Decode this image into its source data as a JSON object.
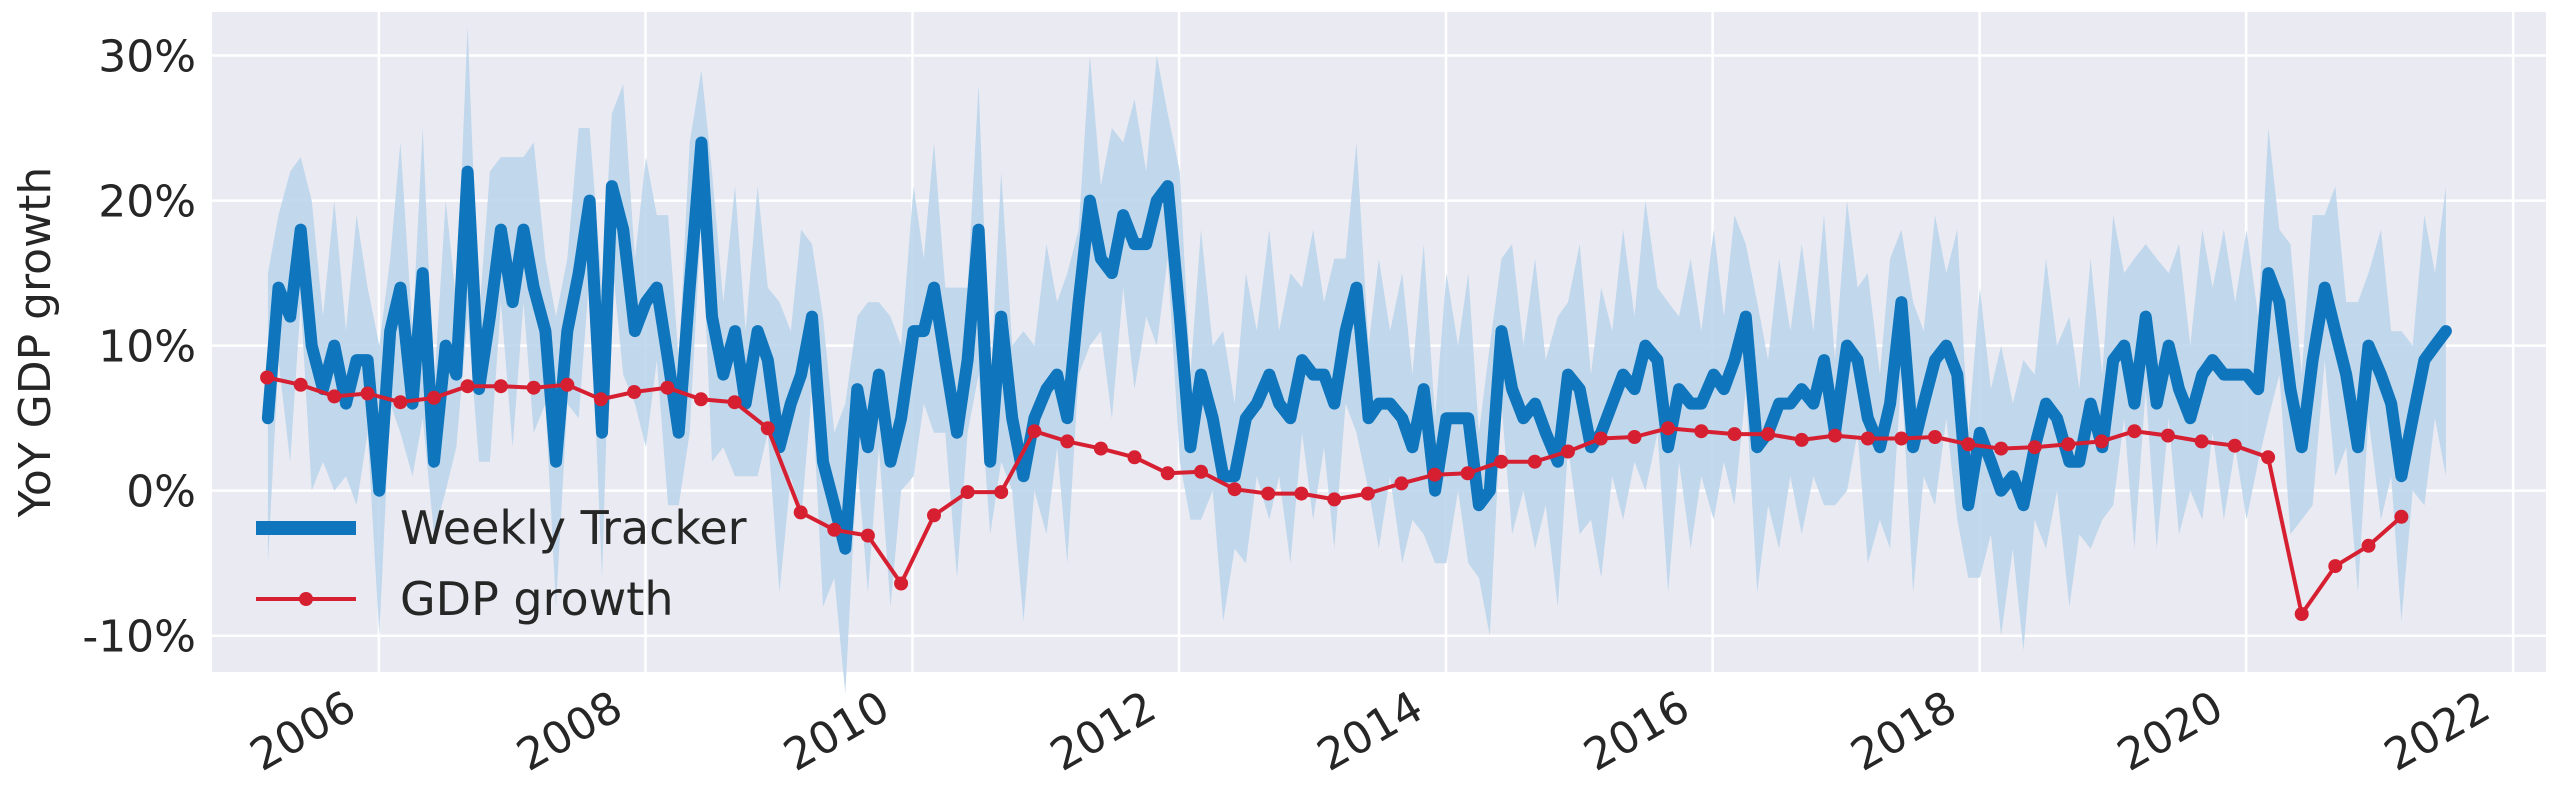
{
  "chart_data": {
    "type": "line",
    "title": "",
    "xlabel": "",
    "ylabel": "YoY GDP growth",
    "xlim": [
      "2004-10-01",
      "2022-04-01"
    ],
    "ylim": [
      -12.5,
      33
    ],
    "grid": true,
    "legend_position": "lower-left",
    "x_ticks": [
      {
        "date": "2006-01-01",
        "label": "2006"
      },
      {
        "date": "2008-01-01",
        "label": "2008"
      },
      {
        "date": "2010-01-01",
        "label": "2010"
      },
      {
        "date": "2012-01-01",
        "label": "2012"
      },
      {
        "date": "2014-01-01",
        "label": "2014"
      },
      {
        "date": "2016-01-01",
        "label": "2016"
      },
      {
        "date": "2018-01-01",
        "label": "2018"
      },
      {
        "date": "2020-01-01",
        "label": "2020"
      },
      {
        "date": "2022-01-01",
        "label": "2022"
      }
    ],
    "y_ticks": [
      {
        "value": -10,
        "label": "-10%"
      },
      {
        "value": 0,
        "label": "0%"
      },
      {
        "value": 10,
        "label": "10%"
      },
      {
        "value": 20,
        "label": "20%"
      },
      {
        "value": 30,
        "label": "30%"
      }
    ],
    "colors": {
      "weekly_line": "#0f75bc",
      "weekly_band": "#b8d4eb",
      "gdp": "#d62031",
      "background": "#eaeaf2",
      "grid": "#ffffff"
    },
    "band_half_width": [
      10,
      5
    ],
    "series": [
      {
        "name": "Weekly Tracker",
        "x": [
          "2005-03-03",
          "2005-04-01",
          "2005-05-03",
          "2005-06-01",
          "2005-07-01",
          "2005-08-01",
          "2005-09-01",
          "2005-10-03",
          "2005-11-01",
          "2005-12-01",
          "2006-01-02",
          "2006-02-01",
          "2006-03-01",
          "2006-04-03",
          "2006-05-01",
          "2006-06-01",
          "2006-07-03",
          "2006-08-01",
          "2006-09-01",
          "2006-10-02",
          "2006-11-01",
          "2006-12-01",
          "2007-01-02",
          "2007-02-01",
          "2007-03-01",
          "2007-04-02",
          "2007-05-01",
          "2007-06-01",
          "2007-07-02",
          "2007-08-01",
          "2007-09-04",
          "2007-10-01",
          "2007-11-01",
          "2007-12-03",
          "2008-01-02",
          "2008-02-01",
          "2008-03-03",
          "2008-04-01",
          "2008-05-01",
          "2008-06-02",
          "2008-07-01",
          "2008-08-01",
          "2008-09-02",
          "2008-10-01",
          "2008-11-03",
          "2008-12-01",
          "2009-01-02",
          "2009-02-02",
          "2009-03-02",
          "2009-04-01",
          "2009-05-01",
          "2009-06-01",
          "2009-07-01",
          "2009-08-03",
          "2009-09-01",
          "2009-10-01",
          "2009-11-02",
          "2009-12-01",
          "2010-01-04",
          "2010-02-01",
          "2010-03-01",
          "2010-04-01",
          "2010-05-03",
          "2010-06-01",
          "2010-07-01",
          "2010-08-02",
          "2010-09-01",
          "2010-10-01",
          "2010-11-01",
          "2010-12-01",
          "2011-01-03",
          "2011-02-01",
          "2011-03-01",
          "2011-04-01",
          "2011-05-02",
          "2011-06-01",
          "2011-07-01",
          "2011-08-01",
          "2011-09-01",
          "2011-10-03",
          "2011-11-01",
          "2011-12-01",
          "2012-01-03",
          "2012-02-01",
          "2012-03-01",
          "2012-04-02",
          "2012-05-01",
          "2012-06-01",
          "2012-07-02",
          "2012-08-01",
          "2012-09-04",
          "2012-10-01",
          "2012-11-01",
          "2012-12-03",
          "2013-01-02",
          "2013-02-01",
          "2013-03-01",
          "2013-04-01",
          "2013-05-01",
          "2013-06-03",
          "2013-07-01",
          "2013-08-01",
          "2013-09-03",
          "2013-10-01",
          "2013-11-01",
          "2013-12-02",
          "2014-01-02",
          "2014-02-03",
          "2014-03-03",
          "2014-04-01",
          "2014-05-01",
          "2014-06-02",
          "2014-07-01",
          "2014-08-01",
          "2014-09-02",
          "2014-10-01",
          "2014-11-03",
          "2014-12-01",
          "2015-01-02",
          "2015-02-02",
          "2015-03-02",
          "2015-04-01",
          "2015-05-01",
          "2015-06-01",
          "2015-07-01",
          "2015-08-03",
          "2015-09-01",
          "2015-10-01",
          "2015-11-02",
          "2015-12-01",
          "2016-01-04",
          "2016-02-01",
          "2016-03-01",
          "2016-04-01",
          "2016-05-02",
          "2016-06-01",
          "2016-07-01",
          "2016-08-01",
          "2016-09-01",
          "2016-10-03",
          "2016-11-01",
          "2016-12-01",
          "2017-01-03",
          "2017-02-01",
          "2017-03-01",
          "2017-04-03",
          "2017-05-01",
          "2017-06-01",
          "2017-07-03",
          "2017-08-01",
          "2017-09-01",
          "2017-10-02",
          "2017-11-01",
          "2017-12-01",
          "2018-01-02",
          "2018-02-01",
          "2018-03-01",
          "2018-04-02",
          "2018-05-01",
          "2018-06-01",
          "2018-07-02",
          "2018-08-01",
          "2018-09-04",
          "2018-10-01",
          "2018-11-01",
          "2018-12-03",
          "2019-01-02",
          "2019-02-01",
          "2019-03-01",
          "2019-04-01",
          "2019-05-01",
          "2019-06-03",
          "2019-07-01",
          "2019-08-01",
          "2019-09-03",
          "2019-10-01",
          "2019-11-01",
          "2019-12-02",
          "2020-01-02",
          "2020-02-03",
          "2020-03-02",
          "2020-04-01",
          "2020-05-01",
          "2020-06-01",
          "2020-07-01",
          "2020-08-03",
          "2020-09-01",
          "2020-10-01",
          "2020-11-02",
          "2020-12-01",
          "2021-01-04",
          "2021-02-01",
          "2021-03-01",
          "2021-04-01",
          "2021-05-03",
          "2021-06-01",
          "2021-07-01"
        ],
        "values": [
          5,
          14,
          12,
          18,
          10,
          7,
          10,
          6,
          9,
          9,
          0,
          11,
          14,
          6,
          15,
          2,
          10,
          8,
          22,
          7,
          12,
          18,
          13,
          18,
          14,
          11,
          2,
          11,
          15,
          20,
          4,
          21,
          18,
          11,
          13,
          14,
          9,
          4,
          14,
          24,
          12,
          8,
          11,
          6,
          11,
          9,
          3,
          6,
          8,
          12,
          2,
          -1,
          -4,
          7,
          3,
          8,
          2,
          5,
          11,
          11,
          14,
          9,
          4,
          9,
          18,
          2,
          12,
          5,
          1,
          5,
          7,
          8,
          5,
          13,
          20,
          16,
          15,
          19,
          17,
          17,
          20,
          21,
          12,
          3,
          8,
          5,
          1,
          1,
          5,
          6,
          8,
          6,
          5,
          9,
          8,
          8,
          6,
          11,
          14,
          5,
          6,
          6,
          5,
          3,
          7,
          0,
          5,
          5,
          5,
          -1,
          0,
          11,
          7,
          5,
          6,
          4,
          2,
          8,
          7,
          3,
          4,
          6,
          8,
          7,
          10,
          9,
          3,
          7,
          6,
          6,
          8,
          7,
          9,
          12,
          3,
          4,
          6,
          6,
          7,
          6,
          9,
          4,
          10,
          9,
          5,
          3,
          6,
          13,
          3,
          6,
          9,
          10,
          8,
          -1,
          4,
          2,
          0,
          1,
          -1,
          3,
          6,
          5,
          2,
          2,
          6,
          3,
          9,
          10,
          6,
          12,
          6,
          10,
          7,
          5,
          8,
          9,
          8,
          8,
          8,
          7,
          15,
          13,
          7,
          3,
          9,
          14,
          11,
          8,
          3,
          10,
          8,
          6,
          1,
          5,
          9,
          10,
          11
        ]
      },
      {
        "name": "GDP growth",
        "x": [
          "2005-03-01",
          "2005-06-01",
          "2005-09-01",
          "2005-12-01",
          "2006-03-01",
          "2006-06-01",
          "2006-09-01",
          "2006-12-01",
          "2007-03-01",
          "2007-06-01",
          "2007-09-01",
          "2007-12-01",
          "2008-03-01",
          "2008-06-01",
          "2008-09-01",
          "2008-12-01",
          "2009-03-01",
          "2009-06-01",
          "2009-09-01",
          "2009-12-01",
          "2010-03-01",
          "2010-06-01",
          "2010-09-01",
          "2010-12-01",
          "2011-03-01",
          "2011-06-01",
          "2011-09-01",
          "2011-12-01",
          "2012-03-01",
          "2012-06-01",
          "2012-09-01",
          "2012-12-01",
          "2013-03-01",
          "2013-06-01",
          "2013-09-01",
          "2013-12-01",
          "2014-03-01",
          "2014-06-01",
          "2014-09-01",
          "2014-12-01",
          "2015-03-01",
          "2015-06-01",
          "2015-09-01",
          "2015-12-01",
          "2016-03-01",
          "2016-06-01",
          "2016-09-01",
          "2016-12-01",
          "2017-03-01",
          "2017-06-01",
          "2017-09-01",
          "2017-12-01",
          "2018-03-01",
          "2018-06-01",
          "2018-09-01",
          "2018-12-01",
          "2019-03-01",
          "2019-06-01",
          "2019-09-01",
          "2019-12-01",
          "2020-03-01",
          "2020-06-01",
          "2020-09-01",
          "2020-12-01",
          "2021-03-01"
        ],
        "values": [
          7.8,
          7.3,
          6.5,
          6.7,
          6.1,
          6.4,
          7.2,
          7.2,
          7.1,
          7.3,
          6.3,
          6.8,
          7.1,
          6.3,
          6.1,
          4.3,
          -1.5,
          -2.7,
          -3.1,
          -6.4,
          -1.7,
          -0.1,
          -0.1,
          4.1,
          3.4,
          2.9,
          2.3,
          1.2,
          1.3,
          0.1,
          -0.2,
          -0.2,
          -0.6,
          -0.2,
          0.5,
          1.1,
          1.2,
          2.0,
          2.0,
          2.7,
          3.6,
          3.7,
          4.3,
          4.1,
          3.9,
          3.9,
          3.5,
          3.8,
          3.6,
          3.6,
          3.7,
          3.2,
          2.9,
          3.0,
          3.2,
          3.4,
          4.1,
          3.8,
          3.4,
          3.1,
          2.3,
          -8.5,
          -5.2,
          -3.8,
          -1.8
        ]
      }
    ]
  }
}
